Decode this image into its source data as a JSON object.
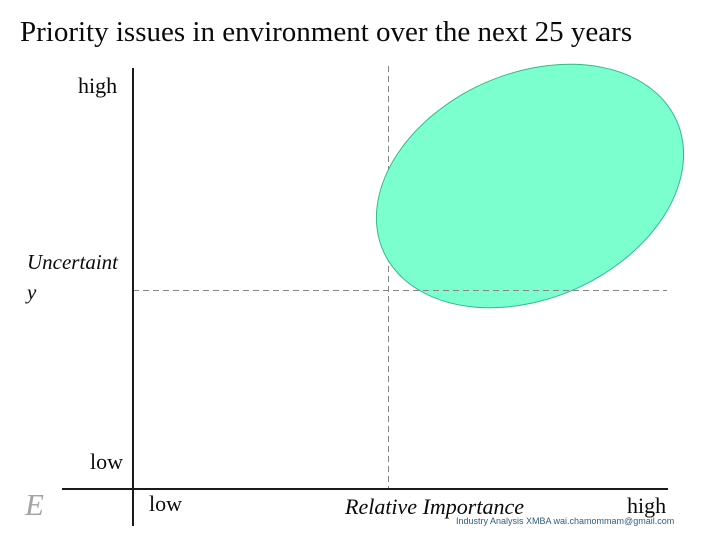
{
  "slide": {
    "title": "Priority issues in environment over the next 25 years",
    "watermark_letter": "E",
    "footer_credit": "Industry Analysis XMBA wai.chamommam@gmail.com"
  },
  "chart": {
    "y_axis": {
      "label_lines": [
        "Uncertaint",
        "y"
      ],
      "top_tick": "high",
      "bottom_tick": "low"
    },
    "x_axis": {
      "label": "Relative Importance",
      "left_tick": "low",
      "right_tick": "high"
    }
  },
  "colors": {
    "ellipse_fill": "#7cffcf",
    "ellipse_border": "#35b98c",
    "dashed_line": "#858585",
    "axis_line": "#1a1a1a",
    "footer_text": "#2d5f7d",
    "watermark_gray": "#a3a3a3"
  },
  "chart_data": {
    "type": "area",
    "title": "Priority issues in environment over the next 25 years",
    "xlabel": "Relative Importance",
    "ylabel": "Uncertainty",
    "xlim": [
      0,
      1
    ],
    "ylim": [
      0,
      1
    ],
    "x_tick_labels": [
      "low",
      "high"
    ],
    "y_tick_labels": [
      "low",
      "high"
    ],
    "grid": false,
    "legend": false,
    "reference_lines": [
      {
        "orientation": "vertical",
        "x": 0.48,
        "style": "dashed",
        "color": "#858585"
      },
      {
        "orientation": "horizontal",
        "y": 0.48,
        "style": "dashed",
        "color": "#858585"
      }
    ],
    "regions": [
      {
        "shape": "ellipse",
        "center_x": 0.74,
        "center_y": 0.72,
        "semi_major_frac_of_x_span": 0.3,
        "semi_minor_frac_of_y_span": 0.27,
        "rotation_deg_ccw": 24,
        "fill": "#7cffcf",
        "stroke": "#35b98c"
      }
    ]
  }
}
